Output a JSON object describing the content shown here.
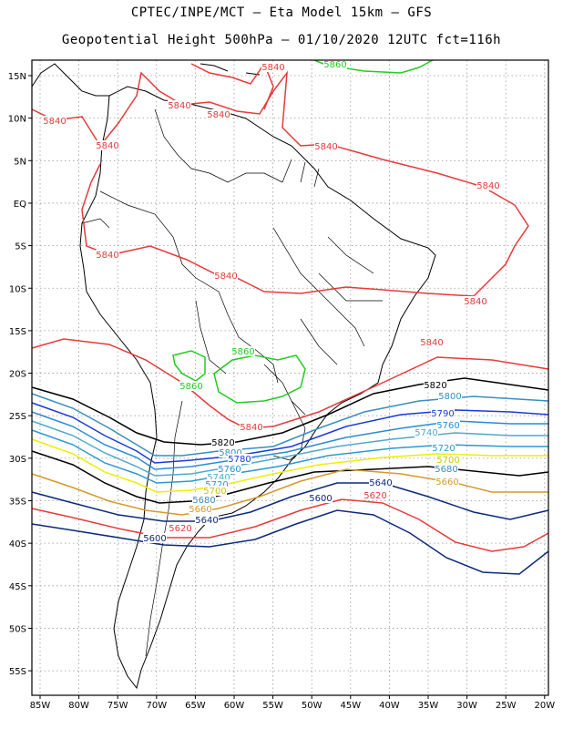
{
  "header": {
    "line1": "CPTEC/INPE/MCT –  Eta Model 15km – GFS",
    "line2": "Geopotential Height 500hPa – 01/10/2020 12UTC fct=116h"
  },
  "axes": {
    "lon_labels": [
      "85W",
      "80W",
      "75W",
      "70W",
      "65W",
      "60W",
      "55W",
      "50W",
      "45W",
      "40W",
      "35W",
      "30W",
      "25W",
      "20W"
    ],
    "lat_labels": [
      "15N",
      "10N",
      "5N",
      "EQ",
      "5S",
      "10S",
      "15S",
      "20S",
      "25S",
      "30S",
      "35S",
      "40S",
      "45S",
      "50S",
      "55S"
    ]
  },
  "contours": [
    {
      "value": "5840",
      "color": "#e83a3a"
    },
    {
      "value": "5860",
      "color": "#22cc22"
    },
    {
      "value": "5820",
      "color": "#000000"
    },
    {
      "value": "5800",
      "color": "#3a8ec0"
    },
    {
      "value": "5790",
      "color": "#1a3adc"
    },
    {
      "value": "5760",
      "color": "#2a8ad8"
    },
    {
      "value": "5740",
      "color": "#50a8cc"
    },
    {
      "value": "5720",
      "color": "#2a9ad0"
    },
    {
      "value": "5700",
      "color": "#eeee00"
    },
    {
      "value": "5660",
      "color": "#d49a2a"
    },
    {
      "value": "5640",
      "color": "#0a2a7a"
    },
    {
      "value": "5620",
      "color": "#e83a3a"
    },
    {
      "value": "5600",
      "color": "#0a2a7a"
    }
  ],
  "labels": [
    {
      "text": "5860",
      "color": "#22cc22"
    },
    {
      "text": "5840",
      "color": "#e83a3a"
    },
    {
      "text": "5840",
      "color": "#e83a3a"
    },
    {
      "text": "5840",
      "color": "#e83a3a"
    },
    {
      "text": "5840",
      "color": "#e83a3a"
    },
    {
      "text": "5840",
      "color": "#e83a3a"
    },
    {
      "text": "5840",
      "color": "#e83a3a"
    },
    {
      "text": "5840",
      "color": "#e83a3a"
    },
    {
      "text": "5840",
      "color": "#e83a3a"
    },
    {
      "text": "5840",
      "color": "#e83a3a"
    },
    {
      "text": "5840",
      "color": "#e83a3a"
    },
    {
      "text": "5860",
      "color": "#22cc22"
    },
    {
      "text": "5860",
      "color": "#22cc22"
    },
    {
      "text": "5840",
      "color": "#e83a3a"
    },
    {
      "text": "5840",
      "color": "#e83a3a"
    },
    {
      "text": "5820",
      "color": "#000000"
    },
    {
      "text": "5800",
      "color": "#3a8ec0"
    },
    {
      "text": "5790",
      "color": "#1a3adc"
    },
    {
      "text": "5760",
      "color": "#2a8ad8"
    },
    {
      "text": "5740",
      "color": "#50a8cc"
    },
    {
      "text": "5720",
      "color": "#2a9ad0"
    },
    {
      "text": "5700",
      "color": "#c8c800"
    },
    {
      "text": "5660",
      "color": "#d49a2a"
    },
    {
      "text": "5820",
      "color": "#000000"
    },
    {
      "text": "5800",
      "color": "#3a8ec0"
    },
    {
      "text": "5780",
      "color": "#1a3adc"
    },
    {
      "text": "5760",
      "color": "#2a8ad8"
    },
    {
      "text": "5740",
      "color": "#50a8cc"
    },
    {
      "text": "5720",
      "color": "#2a9ad0"
    },
    {
      "text": "5700",
      "color": "#c8c800"
    },
    {
      "text": "5660",
      "color": "#d49a2a"
    },
    {
      "text": "5680",
      "color": "#3a8ec0"
    },
    {
      "text": "5680",
      "color": "#3a8ec0"
    },
    {
      "text": "5640",
      "color": "#0a2a7a"
    },
    {
      "text": "5640",
      "color": "#0a2a7a"
    },
    {
      "text": "5620",
      "color": "#e83a3a"
    },
    {
      "text": "5620",
      "color": "#e83a3a"
    },
    {
      "text": "5600",
      "color": "#0a2a7a"
    },
    {
      "text": "5600",
      "color": "#0a2a7a"
    }
  ]
}
